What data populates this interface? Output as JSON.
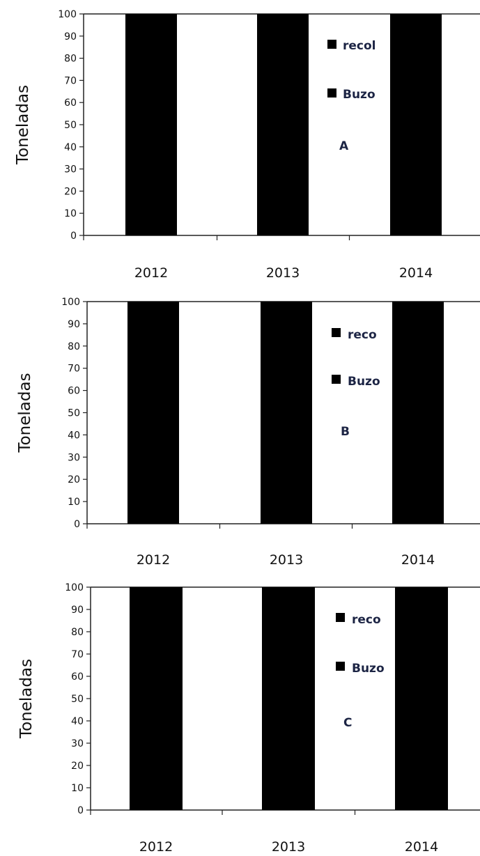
{
  "chart_data": [
    {
      "type": "bar",
      "panel_label": "A",
      "ylabel": "Toneladas",
      "categories": [
        "2012",
        "2013",
        "2014"
      ],
      "series": [
        {
          "name": "recol",
          "values": [
            100,
            100,
            100
          ]
        }
      ],
      "legend": [
        "recol",
        "Buzo"
      ],
      "ylim": [
        0,
        100
      ],
      "yticks": [
        "0",
        "10",
        "20",
        "30",
        "40",
        "50",
        "60",
        "70",
        "80",
        "90",
        "100"
      ],
      "legend_position": "right",
      "grid": false
    },
    {
      "type": "bar",
      "panel_label": "B",
      "ylabel": "Toneladas",
      "categories": [
        "2012",
        "2013",
        "2014"
      ],
      "series": [
        {
          "name": "reco",
          "values": [
            100,
            100,
            100
          ]
        }
      ],
      "legend": [
        "reco",
        "Buzo"
      ],
      "ylim": [
        0,
        100
      ],
      "yticks": [
        "0",
        "10",
        "20",
        "30",
        "40",
        "50",
        "60",
        "70",
        "80",
        "90",
        "100"
      ],
      "legend_position": "right",
      "grid": false
    },
    {
      "type": "bar",
      "panel_label": "C",
      "ylabel": "Toneladas",
      "categories": [
        "2012",
        "2013",
        "2014"
      ],
      "series": [
        {
          "name": "reco",
          "values": [
            100,
            100,
            100
          ]
        }
      ],
      "legend": [
        "reco",
        "Buzo"
      ],
      "ylim": [
        0,
        100
      ],
      "yticks": [
        "0",
        "10",
        "20",
        "30",
        "40",
        "50",
        "60",
        "70",
        "80",
        "90",
        "100"
      ],
      "legend_position": "right",
      "grid": false
    }
  ],
  "colors": {
    "bar": "#000000",
    "axis": "#222222",
    "legend_text": "#1c2444"
  }
}
